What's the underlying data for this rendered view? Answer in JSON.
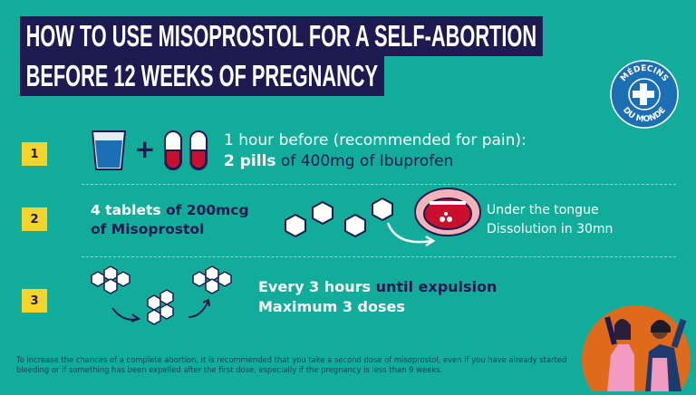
{
  "title": {
    "line1": "HOW TO USE MISOPROSTOL FOR A SELF-ABORTION",
    "line2": "BEFORE 12 WEEKS OF PREGNANCY"
  },
  "logo": {
    "text_top": "MÉDECINS",
    "text_bottom": "DU MONDE"
  },
  "colors": {
    "background": "#12ad9a",
    "navy": "#1d1a52",
    "yellow": "#f6d32a",
    "pill_red": "#c8102e",
    "orange": "#e06a1b"
  },
  "steps": [
    {
      "number": "1",
      "plus": "+",
      "line1": "1 hour before (recommended for pain):",
      "line2_bold": "2 pills",
      "line2_rest": " of 400mg of Ibuprofen"
    },
    {
      "number": "2",
      "bold1": "4 tablets",
      "rest1": " of 200mcg",
      "rest2": "of Misoprostol",
      "side1": "Under the tongue",
      "side2": "Dissolution in 30mn"
    },
    {
      "number": "3",
      "bold1": "Every 3 hours",
      "rest1": " until expulsion",
      "line2": "Maximum 3 doses"
    }
  ],
  "note": "To increase the chances of a complete abortion, it is recommended that you take a second dose of misoprostol, even if you have already started bleeding or if something has been expelled after the first dose, especially if the pregnancy is less than 9 weeks."
}
